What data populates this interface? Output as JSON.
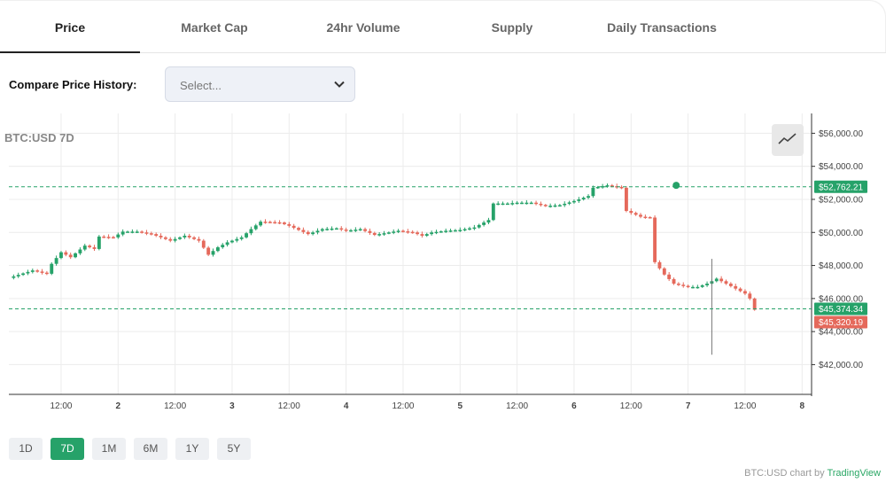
{
  "tabs": [
    {
      "label": "Price",
      "active": true
    },
    {
      "label": "Market Cap",
      "active": false
    },
    {
      "label": "24hr Volume",
      "active": false
    },
    {
      "label": "Supply",
      "active": false
    },
    {
      "label": "Daily Transactions",
      "active": false
    }
  ],
  "compare": {
    "label": "Compare Price History:",
    "placeholder": "Select..."
  },
  "chart_title": "BTC:USD 7D",
  "chart_type_icon": "line-chart-icon",
  "ranges": [
    {
      "label": "1D",
      "active": false
    },
    {
      "label": "7D",
      "active": true
    },
    {
      "label": "1M",
      "active": false
    },
    {
      "label": "6M",
      "active": false
    },
    {
      "label": "1Y",
      "active": false
    },
    {
      "label": "5Y",
      "active": false
    }
  ],
  "attribution": {
    "prefix": "BTC:USD chart by",
    "brand": "TradingView"
  },
  "colors": {
    "up": "#26a269",
    "down": "#e5695b",
    "grid": "#ececec",
    "accent": "#26a269"
  },
  "chart_data": {
    "type": "candlestick",
    "title": "BTC:USD 7D",
    "ylim": [
      40200,
      57200
    ],
    "y_ticks": [
      "$42,000.00",
      "$44,000.00",
      "$46,000.00",
      "$48,000.00",
      "$50,000.00",
      "$52,000.00",
      "$54,000.00",
      "$56,000.00"
    ],
    "y_tick_values": [
      42000,
      44000,
      46000,
      48000,
      50000,
      52000,
      54000,
      56000
    ],
    "x_ticks": [
      "12:00",
      "2",
      "12:00",
      "3",
      "12:00",
      "4",
      "12:00",
      "5",
      "12:00",
      "6",
      "12:00",
      "7",
      "12:00",
      "8"
    ],
    "x_tick_hours": [
      12,
      24,
      36,
      48,
      60,
      72,
      84,
      96,
      108,
      120,
      132,
      144,
      156,
      168
    ],
    "x_range_hours": [
      1,
      170
    ],
    "price_lines": [
      {
        "label": "$52,762.21",
        "value": 52762.21,
        "color": "#26a269"
      },
      {
        "label": "$45,374.34",
        "value": 45374.34,
        "color": "#26a269"
      },
      {
        "label": "$45,320.19",
        "value": 45320.19,
        "color": "#e5695b"
      }
    ],
    "marker": {
      "hour": 141.5,
      "value": 52850
    },
    "key_points": [
      [
        1,
        47250
      ],
      [
        6,
        47700
      ],
      [
        9,
        47500
      ],
      [
        10,
        48100
      ],
      [
        12,
        48800
      ],
      [
        14,
        48500
      ],
      [
        17,
        49200
      ],
      [
        19,
        49000
      ],
      [
        20,
        49750
      ],
      [
        23,
        49700
      ],
      [
        25,
        50050
      ],
      [
        28,
        50050
      ],
      [
        31,
        49900
      ],
      [
        35,
        49500
      ],
      [
        38,
        49800
      ],
      [
        41,
        49500
      ],
      [
        43,
        48650
      ],
      [
        45,
        49100
      ],
      [
        47,
        49400
      ],
      [
        50,
        49700
      ],
      [
        52,
        50200
      ],
      [
        54,
        50650
      ],
      [
        58,
        50600
      ],
      [
        60,
        50400
      ],
      [
        62,
        50150
      ],
      [
        64,
        49900
      ],
      [
        67,
        50200
      ],
      [
        70,
        50250
      ],
      [
        72,
        50100
      ],
      [
        75,
        50200
      ],
      [
        78,
        49850
      ],
      [
        81,
        50000
      ],
      [
        83,
        50100
      ],
      [
        86,
        50000
      ],
      [
        88,
        49800
      ],
      [
        90,
        50000
      ],
      [
        93,
        50100
      ],
      [
        96,
        50150
      ],
      [
        99,
        50300
      ],
      [
        102,
        50750
      ],
      [
        103,
        51750
      ],
      [
        106,
        51750
      ],
      [
        108,
        51800
      ],
      [
        111,
        51800
      ],
      [
        114,
        51600
      ],
      [
        117,
        51650
      ],
      [
        120,
        51900
      ],
      [
        123,
        52200
      ],
      [
        124,
        52700
      ],
      [
        127,
        52850
      ],
      [
        130,
        52700
      ],
      [
        131,
        51300
      ],
      [
        134,
        50950
      ],
      [
        136,
        50900
      ],
      [
        137,
        48200
      ],
      [
        139,
        47450
      ],
      [
        141,
        46900
      ],
      [
        144,
        46700
      ],
      [
        146,
        46700
      ],
      [
        148,
        46900
      ],
      [
        150,
        47200
      ],
      [
        152,
        46900
      ],
      [
        154,
        46600
      ],
      [
        156,
        46300
      ],
      [
        157,
        46000
      ],
      [
        158,
        45320
      ]
    ],
    "wicks": [
      {
        "hour": 149,
        "low": 42600,
        "high": 48400
      }
    ]
  }
}
